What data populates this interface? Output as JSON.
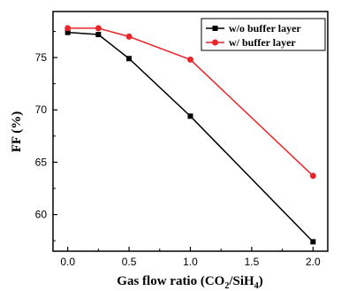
{
  "chart_data": {
    "type": "line",
    "xlabel": "Gas flow ratio (CO",
    "xlabel_sub": "2",
    "xlabel_mid": "/SiH",
    "xlabel_sub2": "4",
    "xlabel_end": ")",
    "ylabel": "FF (%)",
    "xlim": [
      -0.12,
      2.12
    ],
    "ylim": [
      56.5,
      79.4
    ],
    "xticks": [
      0.0,
      0.5,
      1.0,
      1.5,
      2.0
    ],
    "xtick_labels": [
      "0.0",
      "0.5",
      "1.0",
      "1.5",
      "2.0"
    ],
    "yticks": [
      60,
      65,
      70,
      75
    ],
    "ytick_labels": [
      "60",
      "65",
      "70",
      "75"
    ],
    "legend_position": "top-right",
    "series": [
      {
        "name": "w/o buffer layer",
        "color": "#000000",
        "marker": "square",
        "x": [
          0,
          0.25,
          0.5,
          1.0,
          2.0
        ],
        "y": [
          77.4,
          77.2,
          74.9,
          69.4,
          57.4
        ]
      },
      {
        "name": "w/ buffer layer",
        "color": "#e8262a",
        "marker": "circle",
        "x": [
          0,
          0.25,
          0.5,
          1.0,
          2.0
        ],
        "y": [
          77.8,
          77.8,
          77.0,
          74.8,
          63.7
        ]
      }
    ]
  }
}
